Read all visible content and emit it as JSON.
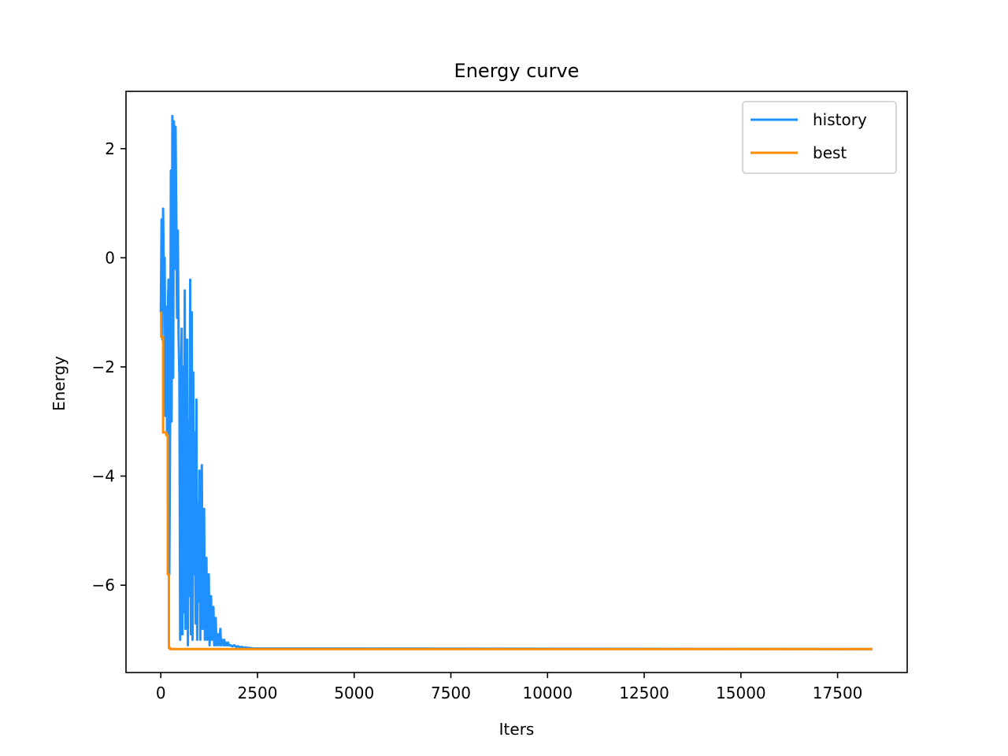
{
  "chart_data": {
    "type": "line",
    "title": "Energy curve",
    "xlabel": "Iters",
    "ylabel": "Energy",
    "xlim": [
      -900,
      19300
    ],
    "ylim": [
      -7.6,
      3.05
    ],
    "xticks": [
      0,
      2500,
      5000,
      7500,
      10000,
      12500,
      15000,
      17500
    ],
    "xtick_labels": [
      "0",
      "2500",
      "5000",
      "7500",
      "10000",
      "12500",
      "15000",
      "17500"
    ],
    "yticks": [
      -6,
      -4,
      -2,
      0,
      2
    ],
    "ytick_labels": [
      "−6",
      "−4",
      "−2",
      "0",
      "2"
    ],
    "legend_position": "upper right",
    "series": [
      {
        "name": "history",
        "color": "#1e90ff",
        "x": [
          0,
          20,
          40,
          60,
          80,
          100,
          120,
          140,
          160,
          180,
          200,
          220,
          240,
          260,
          280,
          300,
          320,
          340,
          360,
          380,
          400,
          420,
          440,
          460,
          480,
          500,
          520,
          540,
          560,
          580,
          600,
          620,
          640,
          660,
          680,
          700,
          720,
          740,
          760,
          780,
          800,
          820,
          840,
          860,
          880,
          900,
          920,
          940,
          960,
          980,
          1000,
          1020,
          1040,
          1060,
          1080,
          1100,
          1120,
          1140,
          1160,
          1180,
          1200,
          1220,
          1240,
          1260,
          1280,
          1300,
          1320,
          1340,
          1360,
          1380,
          1400,
          1420,
          1440,
          1460,
          1480,
          1500,
          1520,
          1540,
          1560,
          1580,
          1600,
          1620,
          1640,
          1660,
          1680,
          1700,
          1720,
          1740,
          1760,
          1780,
          1800,
          1850,
          1900,
          1950,
          2000,
          2050,
          2100,
          2150,
          2200,
          2250,
          2300,
          2400,
          2500,
          2600,
          18400
        ],
        "y": [
          -1.0,
          0.7,
          -1.5,
          0.9,
          -0.4,
          0.0,
          -2.9,
          -0.9,
          -3.2,
          -1.1,
          -0.4,
          -5.8,
          -3.1,
          1.6,
          -3.0,
          2.6,
          -2.2,
          2.5,
          -0.2,
          2.4,
          0.9,
          -1.1,
          0.5,
          -1.4,
          -2.2,
          -7.0,
          -3.0,
          -1.3,
          -6.9,
          -2.0,
          -6.5,
          -0.6,
          -6.8,
          -4.2,
          -1.5,
          -7.1,
          -3.0,
          -6.2,
          -0.4,
          -6.9,
          -1.0,
          -7.0,
          -2.1,
          -5.8,
          -3.2,
          -6.7,
          -2.6,
          -7.0,
          -4.5,
          -6.3,
          -3.9,
          -7.0,
          -5.2,
          -3.8,
          -6.8,
          -5.9,
          -4.6,
          -7.0,
          -6.1,
          -5.5,
          -7.0,
          -6.4,
          -5.8,
          -7.1,
          -6.6,
          -6.2,
          -7.0,
          -6.8,
          -6.4,
          -7.1,
          -6.9,
          -6.6,
          -7.1,
          -7.0,
          -6.9,
          -7.1,
          -7.0,
          -6.8,
          -7.1,
          -7.0,
          -7.05,
          -7.1,
          -7.0,
          -7.1,
          -7.05,
          -7.1,
          -7.1,
          -7.05,
          -7.1,
          -7.1,
          -7.1,
          -7.12,
          -7.1,
          -7.13,
          -7.12,
          -7.14,
          -7.13,
          -7.15,
          -7.14,
          -7.15,
          -7.15,
          -7.16,
          -7.16,
          -7.16,
          -7.17
        ]
      },
      {
        "name": "best",
        "color": "#ff8c00",
        "x": [
          0,
          10,
          10,
          60,
          60,
          140,
          140,
          180,
          180,
          210,
          210,
          240,
          240,
          1000,
          1000,
          18400
        ],
        "y": [
          -1.0,
          -1.0,
          -1.45,
          -1.45,
          -3.2,
          -3.2,
          -3.25,
          -3.25,
          -5.8,
          -5.8,
          -7.15,
          -7.15,
          -7.17,
          -7.17,
          -7.17,
          -7.17
        ]
      }
    ]
  }
}
